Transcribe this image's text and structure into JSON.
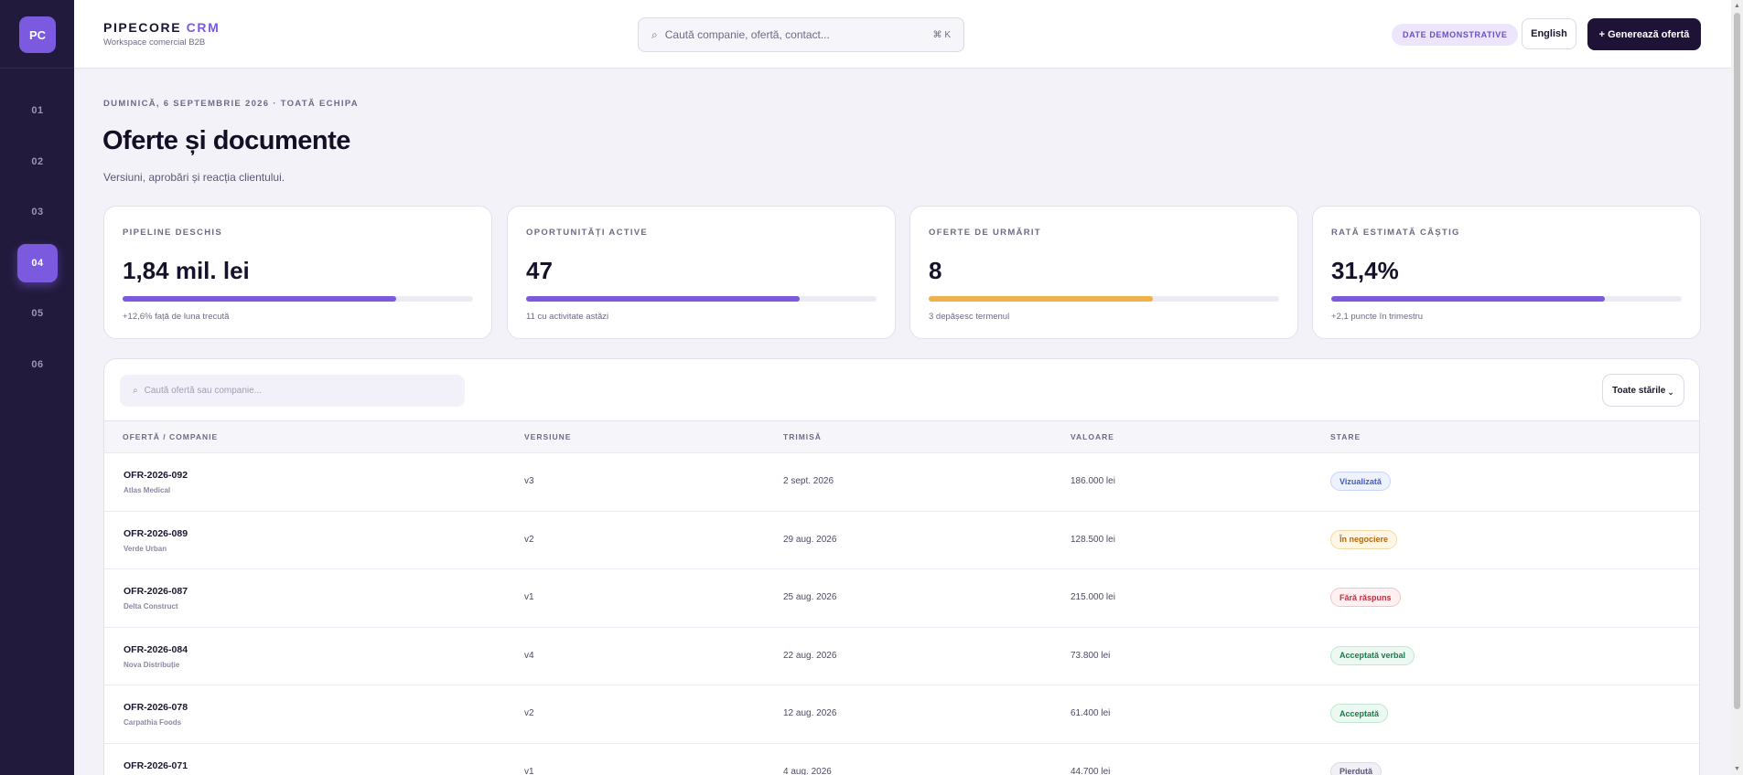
{
  "sidebar": {
    "logo": "PC",
    "items": [
      {
        "label": "01"
      },
      {
        "label": "02"
      },
      {
        "label": "03"
      },
      {
        "label": "04"
      },
      {
        "label": "05"
      },
      {
        "label": "06"
      }
    ],
    "active_index": 3
  },
  "header": {
    "brand_prefix": "PIPECORE",
    "brand_accent": "CRM",
    "workspace": "Workspace comercial B2B",
    "search_placeholder": "Caută companie, ofertă, contact...",
    "search_shortcut": "⌘ K",
    "demo_badge": "DATE DEMONSTRATIVE",
    "language": "English",
    "primary_action": "+ Generează ofertă"
  },
  "page": {
    "eyebrow": "DUMINICĂ, 6 SEPTEMBRIE 2026 · TOATĂ ECHIPA",
    "title": "Oferte și documente",
    "subtitle": "Versiuni, aprobări și reacția clientului."
  },
  "kpis": [
    {
      "label": "PIPELINE DESCHIS",
      "value": "1,84 mil. lei",
      "progress": 0.78,
      "color": "#7b5ae0",
      "note": "+12,6% față de luna trecută"
    },
    {
      "label": "OPORTUNITĂȚI ACTIVE",
      "value": "47",
      "progress": 0.78,
      "color": "#7b5ae0",
      "note": "11 cu activitate astăzi"
    },
    {
      "label": "OFERTE DE URMĂRIT",
      "value": "8",
      "progress": 0.64,
      "color": "#efb14a",
      "note": "3 depășesc termenul"
    },
    {
      "label": "RATĂ ESTIMATĂ CÂȘTIG",
      "value": "31,4%",
      "progress": 0.78,
      "color": "#7b5ae0",
      "note": "+2,1 puncte în trimestru"
    }
  ],
  "table": {
    "search_placeholder": "Caută ofertă sau companie...",
    "filter_label": "Toate stările",
    "columns": [
      "OFERTĂ / COMPANIE",
      "VERSIUNE",
      "TRIMISĂ",
      "VALOARE",
      "STARE"
    ],
    "rows": [
      {
        "id": "OFR-2026-092",
        "company": "Atlas Medical",
        "version": "v3",
        "sent": "2 sept. 2026",
        "value": "186.000 lei",
        "status": "Vizualizată",
        "status_color": "#3f5bc9",
        "status_bg": "#eef2ff",
        "status_border": "#c9d3f7"
      },
      {
        "id": "OFR-2026-089",
        "company": "Verde Urban",
        "version": "v2",
        "sent": "29 aug. 2026",
        "value": "128.500 lei",
        "status": "În negociere",
        "status_color": "#b5690c",
        "status_bg": "#fff6e6",
        "status_border": "#f3d9a6"
      },
      {
        "id": "OFR-2026-087",
        "company": "Delta Construct",
        "version": "v1",
        "sent": "25 aug. 2026",
        "value": "215.000 lei",
        "status": "Fără răspuns",
        "status_color": "#c0303f",
        "status_bg": "#fff0f1",
        "status_border": "#f3c4ca"
      },
      {
        "id": "OFR-2026-084",
        "company": "Nova Distribuție",
        "version": "v4",
        "sent": "22 aug. 2026",
        "value": "73.800 lei",
        "status": "Acceptată verbal",
        "status_color": "#1b7a4c",
        "status_bg": "#ecf9f2",
        "status_border": "#bfe6d1"
      },
      {
        "id": "OFR-2026-078",
        "company": "Carpathia Foods",
        "version": "v2",
        "sent": "12 aug. 2026",
        "value": "61.400 lei",
        "status": "Acceptată",
        "status_color": "#1b7a4c",
        "status_bg": "#ecf9f2",
        "status_border": "#bfe6d1"
      },
      {
        "id": "OFR-2026-071",
        "company": "",
        "version": "v1",
        "sent": "4 aug. 2026",
        "value": "44.700 lei",
        "status": "Pierdută",
        "status_color": "#5d5874",
        "status_bg": "#f1f0f5",
        "status_border": "#dcd8e8"
      }
    ]
  }
}
